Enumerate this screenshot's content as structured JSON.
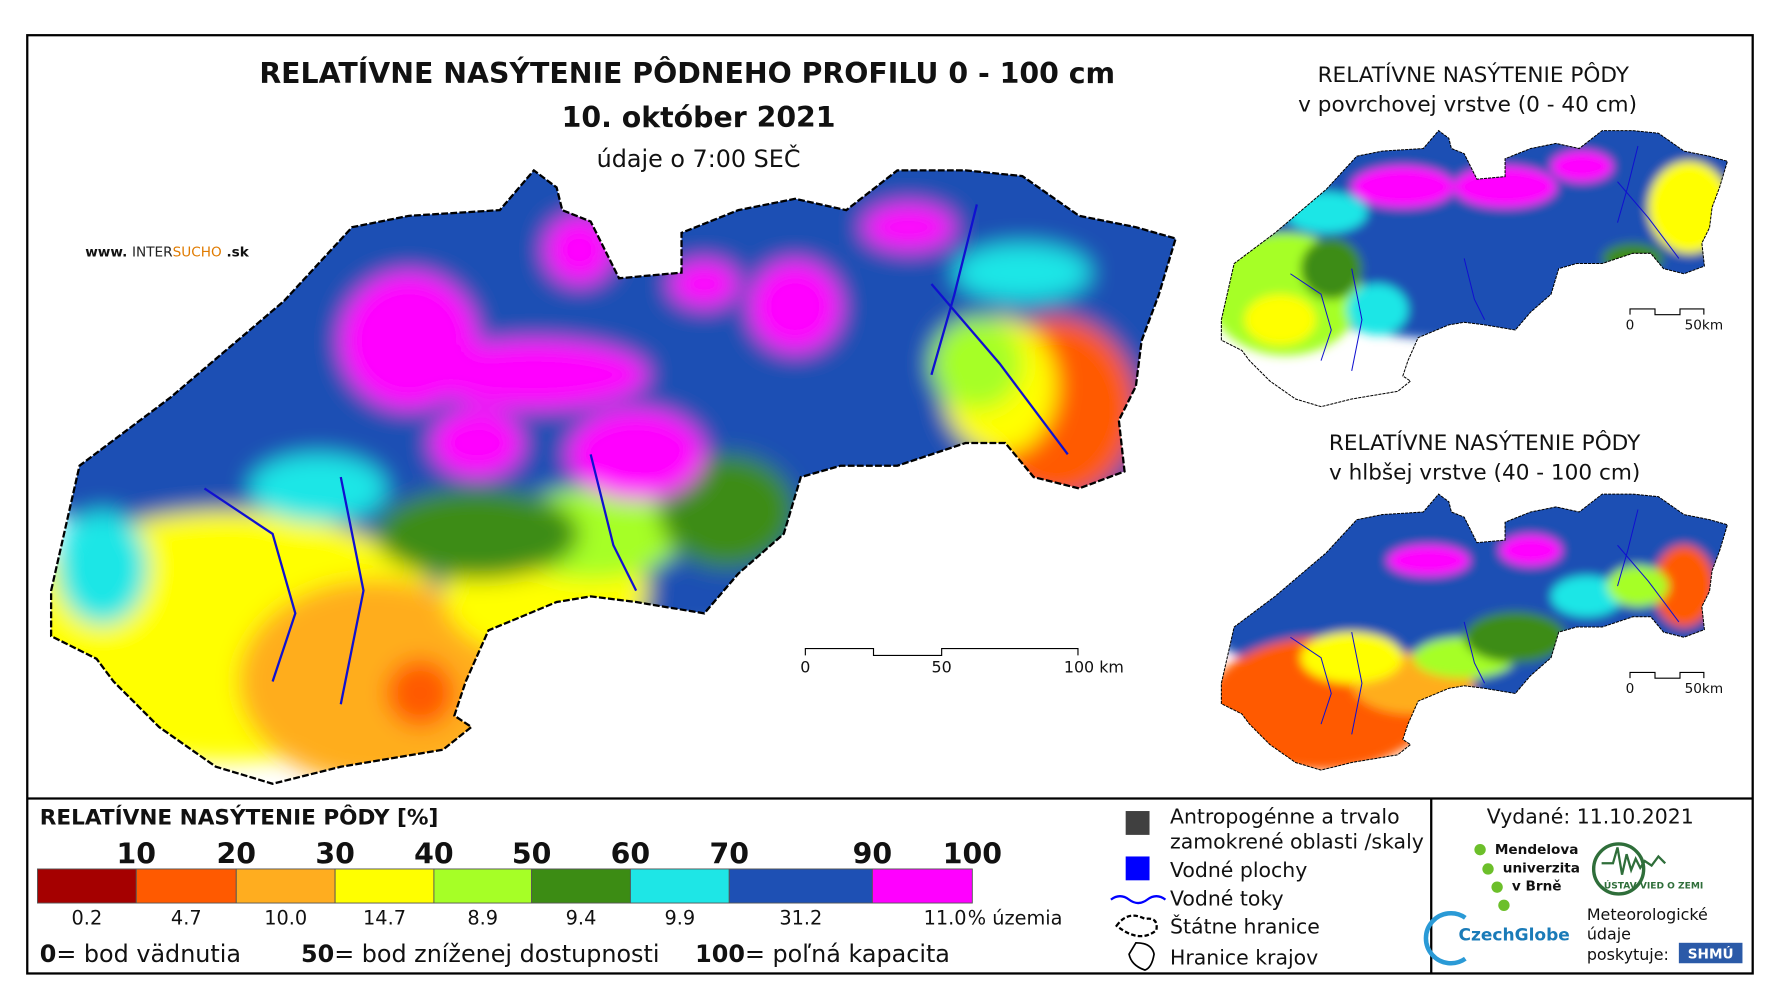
{
  "main_map": {
    "title": "RELATÍVNE NASÝTENIE PÔDNEHO PROFILU 0 - 100 cm",
    "date": "10. október 2021",
    "time_note": "údaje o 7:00 SEČ",
    "website": {
      "prefix": "www.",
      "brand_a": "INTER",
      "brand_b": "SUCHO",
      "suffix": ".sk"
    },
    "scale": [
      "0",
      "50",
      "100 km"
    ]
  },
  "inset_top": {
    "title": "RELATÍVNE NASÝTENIE PÔDY",
    "subtitle": "v povrchovej vrstve (0 - 40 cm)",
    "scale": [
      "0",
      "50km"
    ]
  },
  "inset_bottom": {
    "title": "RELATÍVNE NASÝTENIE PÔDY",
    "subtitle": "v hlbšej vrstve (40 - 100 cm)",
    "scale": [
      "0",
      "50km"
    ]
  },
  "legend": {
    "title": "RELATÍVNE NASÝTENIE PÔDY [%]",
    "breaks": [
      "10",
      "20",
      "30",
      "40",
      "50",
      "60",
      "70",
      "90",
      "100"
    ],
    "classes": [
      {
        "color": "#a50000",
        "area": "0.2"
      },
      {
        "color": "#ff5a00",
        "area": "4.7"
      },
      {
        "color": "#ffad1f",
        "area": "10.0"
      },
      {
        "color": "#ffff00",
        "area": "14.7"
      },
      {
        "color": "#a6ff26",
        "area": "8.9"
      },
      {
        "color": "#3c8c14",
        "area": "9.4"
      },
      {
        "color": "#1ee6e6",
        "area": "9.9"
      },
      {
        "color": "#1e50b4",
        "area": "31.2"
      },
      {
        "color": "#ff00ff",
        "area": "11.0"
      }
    ],
    "area_unit": "% územia",
    "notes": [
      {
        "value": "0",
        "label": "= bod vädnutia"
      },
      {
        "value": "50",
        "label": "= bod zníženej dostupnosti"
      },
      {
        "value": "100",
        "label": "= poľná kapacita"
      }
    ]
  },
  "map_legend": {
    "anthropogenic": [
      "Antropogénne a trvalo",
      "zamokrené oblasti /skaly"
    ],
    "water_bodies": "Vodné plochy",
    "rivers": "Vodné toky",
    "state_border": "Štátne hranice",
    "region_border": "Hranice krajov"
  },
  "footer": {
    "issued": "Vydané: 11.10.2021",
    "mendel": [
      "Mendelova",
      "univerzita",
      "v Brně"
    ],
    "czechglobe": "CzechGlobe",
    "ustav": "ÚSTAV VIED O ZEMI",
    "meteo": [
      "Meteorologické",
      "údaje",
      "poskytuje:"
    ],
    "shmu": "SHMÚ"
  }
}
